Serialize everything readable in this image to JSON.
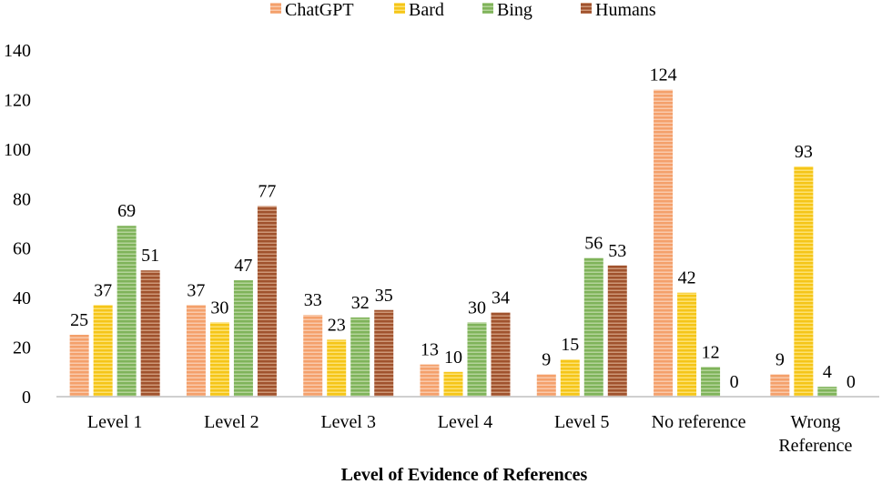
{
  "chart_data": {
    "type": "bar",
    "title": "",
    "xlabel": "Level of Evidence of References",
    "ylabel": "",
    "ylim": [
      0,
      140
    ],
    "yticks": [
      0,
      20,
      40,
      60,
      80,
      100,
      120,
      140
    ],
    "grid": false,
    "legend_position": "top",
    "categories": [
      [
        "Level 1"
      ],
      [
        "Level 2"
      ],
      [
        "Level 3"
      ],
      [
        "Level 4"
      ],
      [
        "Level 5"
      ],
      [
        "No reference"
      ],
      [
        "Wrong",
        "Reference"
      ]
    ],
    "series": [
      {
        "name": "ChatGPT",
        "color": "#F4A06B",
        "stripe": "#FBD5BC",
        "values": [
          25,
          37,
          33,
          13,
          9,
          124,
          9
        ]
      },
      {
        "name": "Bard",
        "color": "#F5C518",
        "stripe": "#FFE98A",
        "values": [
          37,
          30,
          23,
          10,
          15,
          42,
          93
        ]
      },
      {
        "name": "Bing",
        "color": "#7FB35A",
        "stripe": "#C2DDA9",
        "values": [
          69,
          47,
          32,
          30,
          56,
          12,
          4
        ]
      },
      {
        "name": "Humans",
        "color": "#A0522D",
        "stripe": "#D9A98B",
        "values": [
          51,
          77,
          35,
          34,
          53,
          0,
          0
        ]
      }
    ]
  }
}
